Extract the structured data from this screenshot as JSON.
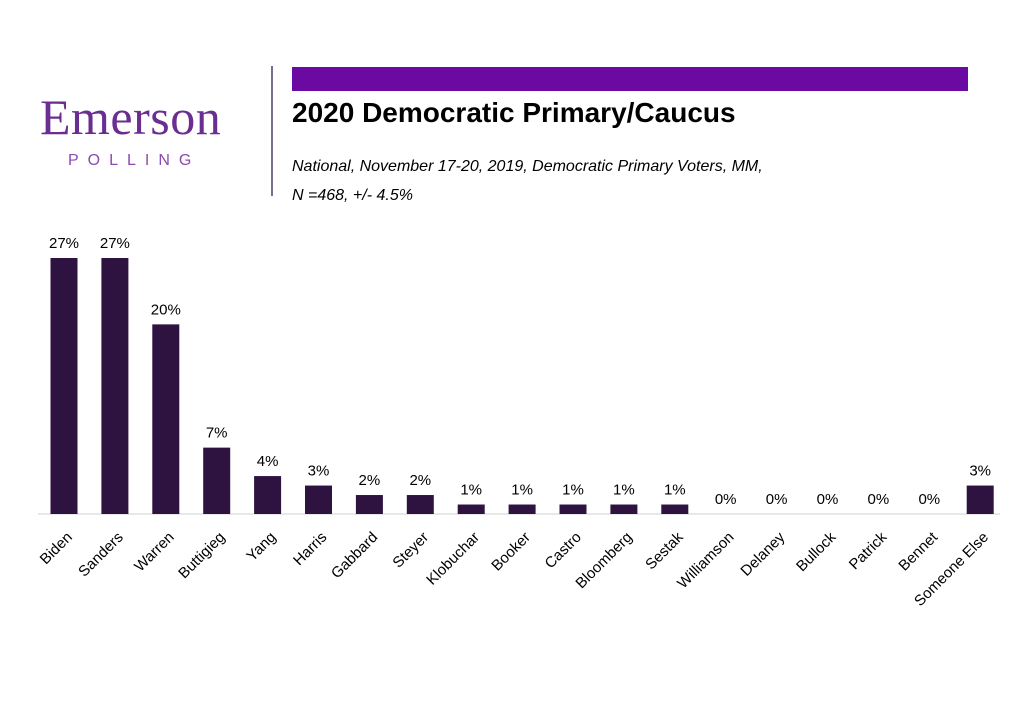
{
  "logo": {
    "name": "Emerson",
    "tagline": "POLLING"
  },
  "header": {
    "title": "2020 Democratic Primary/Caucus",
    "subtitle_line1": "National, November 17-20, 2019, Democratic Primary Voters, MM,",
    "subtitle_line2": "N =468, +/-  4.5%"
  },
  "colors": {
    "bar": "#2e1240",
    "accent_bar": "#6b0aa3",
    "logo": "#6a2d91"
  },
  "chart_data": {
    "type": "bar",
    "title": "2020 Democratic Primary/Caucus",
    "xlabel": "",
    "ylabel": "",
    "ylim": [
      0,
      27
    ],
    "categories": [
      "Biden",
      "Sanders",
      "Warren",
      "Buttigieg",
      "Yang",
      "Harris",
      "Gabbard",
      "Steyer",
      "Klobuchar",
      "Booker",
      "Castro",
      "Bloomberg",
      "Sestak",
      "Williamson",
      "Delaney",
      "Bullock",
      "Patrick",
      "Bennet",
      "Someone Else"
    ],
    "values": [
      27,
      27,
      20,
      7,
      4,
      3,
      2,
      2,
      1,
      1,
      1,
      1,
      1,
      0,
      0,
      0,
      0,
      0,
      3
    ],
    "data_labels": [
      "27%",
      "27%",
      "20%",
      "7%",
      "4%",
      "3%",
      "2%",
      "2%",
      "1%",
      "1%",
      "1%",
      "1%",
      "1%",
      "0%",
      "0%",
      "0%",
      "0%",
      "0%",
      "3%"
    ],
    "grid": false,
    "legend": "none"
  }
}
